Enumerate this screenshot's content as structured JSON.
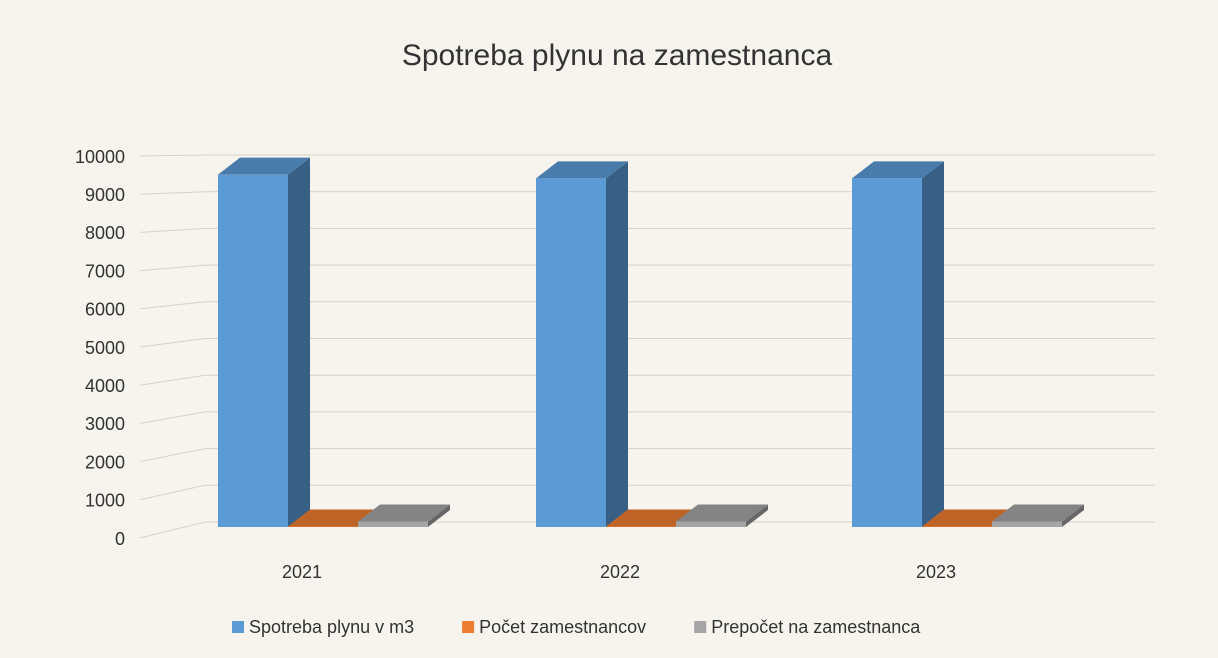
{
  "chart_data": {
    "type": "bar3d",
    "title": "Spotreba plynu na zamestnanca",
    "categories": [
      "2021",
      "2022",
      "2023"
    ],
    "series": [
      {
        "name": "Spotreba plynu v m3",
        "color": "#5b9bd5",
        "values": [
          9600,
          9500,
          9500
        ]
      },
      {
        "name": "Počet zamestnancov",
        "color": "#ed7d31",
        "values": [
          15,
          15,
          15
        ]
      },
      {
        "name": "Prepočet na  zamestnanca",
        "color": "#a5a5a5",
        "values": [
          150,
          150,
          150
        ]
      }
    ],
    "ylim": [
      0,
      10000
    ],
    "yticks": [
      0,
      1000,
      2000,
      3000,
      4000,
      5000,
      6000,
      7000,
      8000,
      9000,
      10000
    ],
    "grid": true,
    "legend": "bottom"
  }
}
